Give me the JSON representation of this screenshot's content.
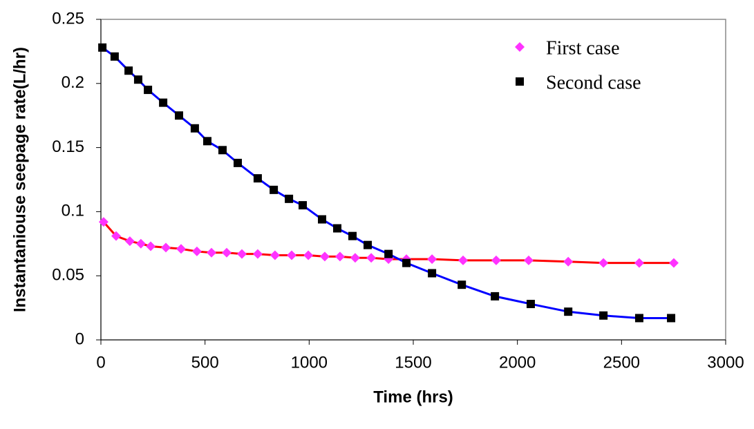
{
  "chart_data": {
    "type": "scatter-line",
    "x_label": "Time (hrs)",
    "y_label": "Instantaniouse seepage rate(L/hr)",
    "xlim": [
      0,
      3000
    ],
    "xticks": [
      0,
      500,
      1000,
      1500,
      2000,
      2500,
      3000
    ],
    "ylim": [
      0,
      0.25
    ],
    "yticks": [
      0,
      0.05,
      0.1,
      0.15,
      0.2,
      0.25
    ],
    "grid": false,
    "legend": "upper right",
    "series": [
      {
        "name": "First case",
        "color": "#ff33ff",
        "line_color": "#ff0000",
        "marker": "diamond",
        "x": [
          13,
          73,
          139,
          192,
          239,
          312,
          385,
          461,
          531,
          604,
          677,
          753,
          836,
          916,
          996,
          1075,
          1148,
          1221,
          1298,
          1381,
          1467,
          1590,
          1739,
          1898,
          2054,
          2244,
          2413,
          2585,
          2751
        ],
        "values": [
          0.092,
          0.081,
          0.077,
          0.075,
          0.073,
          0.072,
          0.071,
          0.069,
          0.068,
          0.068,
          0.067,
          0.067,
          0.066,
          0.066,
          0.066,
          0.065,
          0.065,
          0.064,
          0.064,
          0.063,
          0.063,
          0.063,
          0.062,
          0.062,
          0.062,
          0.061,
          0.06,
          0.06,
          0.06
        ]
      },
      {
        "name": "Second case",
        "color": "#000000",
        "line_color": "#0000ff",
        "marker": "square",
        "x": [
          7,
          66,
          133,
          179,
          226,
          299,
          375,
          451,
          511,
          584,
          657,
          753,
          830,
          903,
          969,
          1062,
          1135,
          1208,
          1281,
          1381,
          1467,
          1590,
          1733,
          1892,
          2064,
          2244,
          2413,
          2585,
          2738
        ],
        "values": [
          0.228,
          0.221,
          0.21,
          0.203,
          0.195,
          0.185,
          0.175,
          0.165,
          0.155,
          0.148,
          0.138,
          0.126,
          0.117,
          0.11,
          0.105,
          0.094,
          0.087,
          0.081,
          0.074,
          0.067,
          0.06,
          0.052,
          0.043,
          0.034,
          0.028,
          0.022,
          0.019,
          0.017,
          0.017
        ]
      }
    ]
  }
}
